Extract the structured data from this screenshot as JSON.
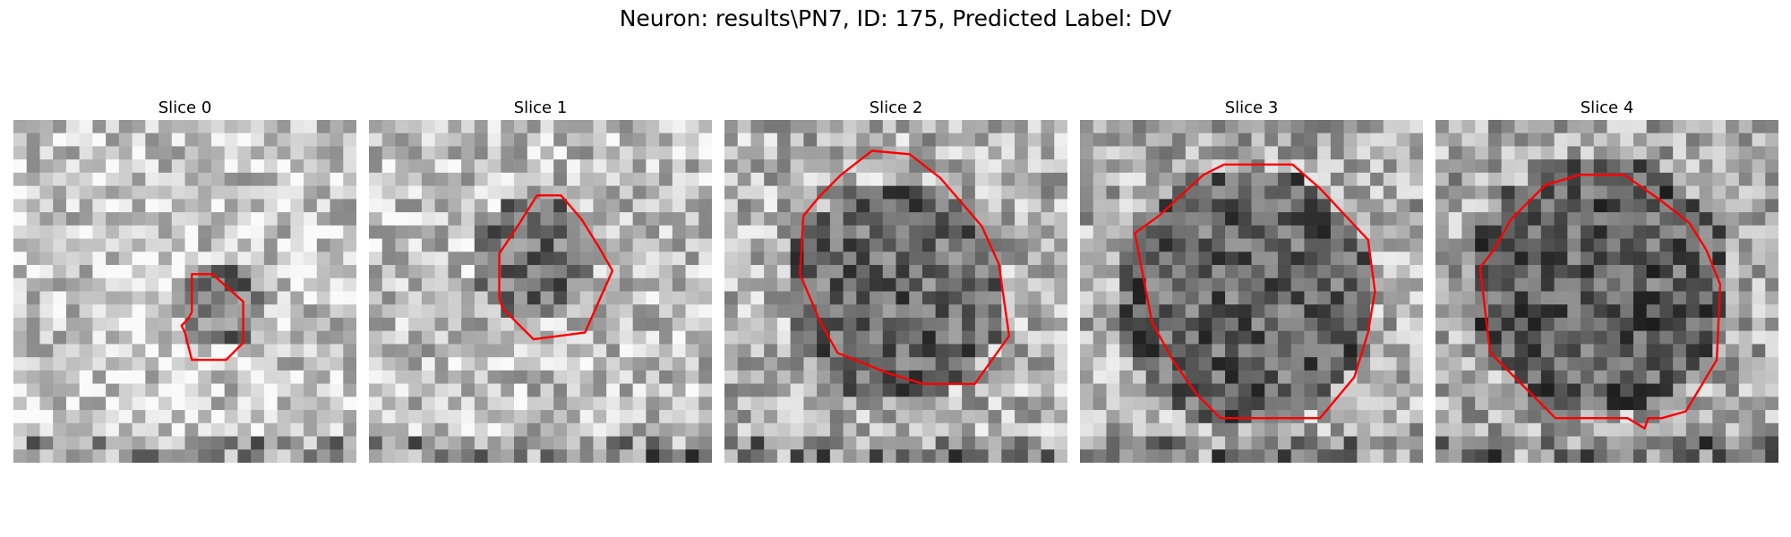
{
  "figure": {
    "title": "Neuron: results\\PN7, ID: 175, Predicted Label: DV"
  },
  "contour_color": "#ff0000",
  "slices": [
    {
      "title": "Slice 0",
      "seed": 11,
      "dark_center": [
        0.6,
        0.55
      ],
      "dark_radius": 0.12,
      "brightness_bias": 0.08,
      "contour": [
        [
          0.52,
          0.45
        ],
        [
          0.58,
          0.45
        ],
        [
          0.67,
          0.53
        ],
        [
          0.67,
          0.65
        ],
        [
          0.62,
          0.7
        ],
        [
          0.52,
          0.7
        ],
        [
          0.5,
          0.62
        ],
        [
          0.49,
          0.6
        ],
        [
          0.51,
          0.58
        ],
        [
          0.52,
          0.56
        ]
      ]
    },
    {
      "title": "Slice 1",
      "seed": 23,
      "dark_center": [
        0.47,
        0.4
      ],
      "dark_radius": 0.18,
      "brightness_bias": 0.05,
      "contour": [
        [
          0.44,
          0.3
        ],
        [
          0.49,
          0.22
        ],
        [
          0.56,
          0.22
        ],
        [
          0.62,
          0.29
        ],
        [
          0.67,
          0.37
        ],
        [
          0.71,
          0.44
        ],
        [
          0.67,
          0.53
        ],
        [
          0.63,
          0.62
        ],
        [
          0.48,
          0.64
        ],
        [
          0.39,
          0.55
        ],
        [
          0.38,
          0.52
        ],
        [
          0.38,
          0.39
        ],
        [
          0.42,
          0.33
        ]
      ]
    },
    {
      "title": "Slice 2",
      "seed": 37,
      "dark_center": [
        0.5,
        0.5
      ],
      "dark_radius": 0.32,
      "brightness_bias": 0.0,
      "contour": [
        [
          0.34,
          0.16
        ],
        [
          0.43,
          0.09
        ],
        [
          0.54,
          0.1
        ],
        [
          0.63,
          0.17
        ],
        [
          0.75,
          0.31
        ],
        [
          0.8,
          0.42
        ],
        [
          0.83,
          0.63
        ],
        [
          0.73,
          0.77
        ],
        [
          0.58,
          0.77
        ],
        [
          0.48,
          0.74
        ],
        [
          0.33,
          0.68
        ],
        [
          0.28,
          0.59
        ],
        [
          0.22,
          0.45
        ],
        [
          0.23,
          0.28
        ],
        [
          0.28,
          0.22
        ]
      ]
    },
    {
      "title": "Slice 3",
      "seed": 49,
      "dark_center": [
        0.48,
        0.52
      ],
      "dark_radius": 0.38,
      "brightness_bias": -0.02,
      "contour": [
        [
          0.23,
          0.28
        ],
        [
          0.36,
          0.16
        ],
        [
          0.42,
          0.13
        ],
        [
          0.62,
          0.13
        ],
        [
          0.7,
          0.2
        ],
        [
          0.84,
          0.35
        ],
        [
          0.86,
          0.5
        ],
        [
          0.84,
          0.62
        ],
        [
          0.8,
          0.75
        ],
        [
          0.7,
          0.87
        ],
        [
          0.41,
          0.87
        ],
        [
          0.34,
          0.8
        ],
        [
          0.27,
          0.7
        ],
        [
          0.21,
          0.59
        ],
        [
          0.16,
          0.33
        ]
      ]
    },
    {
      "title": "Slice 4",
      "seed": 61,
      "dark_center": [
        0.48,
        0.48
      ],
      "dark_radius": 0.38,
      "brightness_bias": -0.04,
      "contour": [
        [
          0.17,
          0.38
        ],
        [
          0.22,
          0.29
        ],
        [
          0.32,
          0.19
        ],
        [
          0.42,
          0.16
        ],
        [
          0.55,
          0.16
        ],
        [
          0.65,
          0.23
        ],
        [
          0.74,
          0.3
        ],
        [
          0.79,
          0.38
        ],
        [
          0.83,
          0.48
        ],
        [
          0.82,
          0.7
        ],
        [
          0.79,
          0.75
        ],
        [
          0.73,
          0.85
        ],
        [
          0.66,
          0.87
        ],
        [
          0.62,
          0.87
        ],
        [
          0.61,
          0.9
        ],
        [
          0.56,
          0.87
        ],
        [
          0.35,
          0.87
        ],
        [
          0.25,
          0.77
        ],
        [
          0.16,
          0.68
        ],
        [
          0.15,
          0.6
        ],
        [
          0.13,
          0.43
        ]
      ]
    }
  ]
}
